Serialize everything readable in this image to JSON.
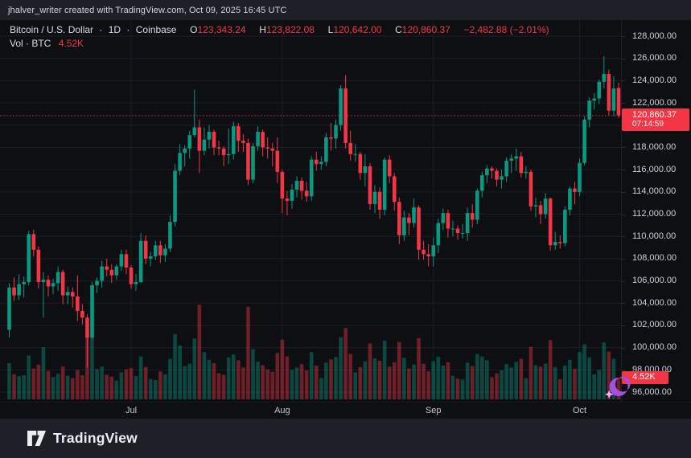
{
  "attribution": {
    "text": "jhalver_writer created with TradingView.com, Oct 09, 2025 16:45 UTC"
  },
  "legend": {
    "title": {
      "symbol": "Bitcoin / U.S. Dollar",
      "separator": "·",
      "interval": "1D",
      "exchange": "Coinbase"
    },
    "ohlc": {
      "o_label": "O",
      "o": "123,343.24",
      "h_label": "H",
      "h": "123,822.08",
      "l_label": "L",
      "l": "120,642.00",
      "c_label": "C",
      "c": "120,860.37",
      "change": "−2,482.88 (−2.01%)"
    },
    "volume": {
      "label": "Vol · BTC",
      "value": "4.52K"
    }
  },
  "price_axis": {
    "labels": [
      "128,000.00",
      "126,000.00",
      "124,000.00",
      "122,000.00",
      "118,000.00",
      "116,000.00",
      "114,000.00",
      "112,000.00",
      "110,000.00",
      "108,000.00",
      "106,000.00",
      "104,000.00",
      "102,000.00",
      "100,000.00",
      "98,000.00",
      "96,000.00"
    ],
    "values": [
      128000,
      126000,
      124000,
      122000,
      118000,
      116000,
      114000,
      112000,
      110000,
      108000,
      106000,
      104000,
      102000,
      100000,
      98000,
      96000
    ]
  },
  "price_badge": {
    "price": "120,860.37",
    "countdown": "07:14:59"
  },
  "vol_badge": {
    "value": "4.52K"
  },
  "time_axis": {
    "months": [
      {
        "label": "Jul",
        "index": 25
      },
      {
        "label": "Aug",
        "index": 56
      },
      {
        "label": "Sep",
        "index": 87
      },
      {
        "label": "Oct",
        "index": 117
      }
    ]
  },
  "footer": {
    "brand": "TradingView"
  },
  "colors": {
    "up": "#089981",
    "down": "#f23645",
    "grid": "#1c1f26",
    "price_line": "#f23645",
    "badge_bg": "#f23645",
    "sticker_purple": "#a34fe0",
    "sticker_star": "#dfb8ff"
  },
  "chart_data": {
    "type": "candlestick",
    "title": "Bitcoin / U.S. Dollar · 1D · Coinbase",
    "x_unit": "trading day, Jun 6 2025 – Oct 9 2025",
    "price_unit": "thousand USD per candle value [open, high, low, close]",
    "volume_unit": "thousand BTC",
    "ylim": [
      96000,
      128000
    ],
    "y_tick_step": 2000,
    "grid": true,
    "current_price": 120860.37,
    "current_price_line": true,
    "countdown": "07:14:59",
    "last_volume_label": "4.52K",
    "month_tick_indices": {
      "Jul": 25,
      "Aug": 56,
      "Sep": 87,
      "Oct": 117
    },
    "candles_k_usd": [
      [
        101.6,
        105.8,
        100.9,
        105.4
      ],
      [
        105.4,
        106.3,
        104.2,
        104.7
      ],
      [
        104.7,
        106.6,
        104.3,
        105.7
      ],
      [
        105.7,
        106.4,
        104.5,
        105.9
      ],
      [
        105.9,
        110.5,
        105.6,
        110.2
      ],
      [
        110.2,
        110.6,
        108.2,
        108.8
      ],
      [
        108.8,
        109.1,
        105.3,
        105.9
      ],
      [
        105.9,
        106.8,
        102.7,
        106.1
      ],
      [
        106.1,
        106.5,
        104.6,
        105.5
      ],
      [
        105.5,
        106.2,
        104.8,
        105.8
      ],
      [
        105.8,
        107.3,
        105.1,
        106.8
      ],
      [
        106.8,
        107.0,
        103.9,
        104.7
      ],
      [
        104.7,
        105.5,
        103.9,
        105.0
      ],
      [
        105.0,
        105.4,
        103.6,
        104.6
      ],
      [
        104.6,
        106.5,
        102.4,
        103.3
      ],
      [
        103.3,
        103.9,
        102.1,
        102.7
      ],
      [
        102.7,
        103.0,
        98.2,
        100.9
      ],
      [
        100.9,
        105.9,
        100.8,
        105.6
      ],
      [
        105.6,
        106.3,
        104.9,
        106.0
      ],
      [
        106.0,
        107.8,
        105.4,
        107.3
      ],
      [
        107.3,
        108.0,
        106.4,
        107.0
      ],
      [
        107.0,
        107.5,
        105.8,
        106.5
      ],
      [
        106.5,
        107.5,
        106.1,
        107.3
      ],
      [
        107.3,
        108.8,
        106.9,
        108.4
      ],
      [
        108.4,
        108.8,
        106.6,
        107.2
      ],
      [
        107.2,
        107.4,
        105.3,
        105.7
      ],
      [
        105.7,
        106.6,
        105.1,
        105.9
      ],
      [
        105.9,
        110.3,
        105.8,
        109.6
      ],
      [
        109.6,
        110.1,
        107.5,
        108.0
      ],
      [
        108.0,
        108.6,
        107.3,
        108.2
      ],
      [
        108.2,
        109.6,
        107.9,
        109.2
      ],
      [
        109.2,
        109.6,
        107.6,
        108.3
      ],
      [
        108.3,
        109.3,
        107.7,
        108.9
      ],
      [
        108.9,
        111.9,
        108.6,
        111.3
      ],
      [
        111.3,
        116.5,
        110.9,
        115.9
      ],
      [
        115.9,
        118.3,
        115.5,
        117.5
      ],
      [
        117.5,
        118.2,
        116.3,
        117.9
      ],
      [
        117.9,
        119.5,
        117.0,
        119.1
      ],
      [
        119.1,
        123.2,
        118.9,
        119.8
      ],
      [
        119.8,
        120.5,
        115.7,
        117.7
      ],
      [
        117.7,
        119.8,
        117.3,
        118.7
      ],
      [
        118.7,
        120.0,
        117.9,
        119.4
      ],
      [
        119.4,
        119.6,
        117.3,
        118.0
      ],
      [
        118.0,
        118.6,
        117.3,
        117.9
      ],
      [
        117.9,
        118.1,
        116.3,
        117.3
      ],
      [
        117.3,
        119.7,
        116.5,
        117.4
      ],
      [
        117.4,
        120.3,
        116.9,
        119.9
      ],
      [
        119.9,
        120.2,
        117.6,
        118.6
      ],
      [
        118.6,
        119.2,
        117.6,
        118.4
      ],
      [
        118.4,
        118.8,
        114.6,
        115.1
      ],
      [
        115.1,
        118.4,
        114.8,
        118.1
      ],
      [
        118.1,
        119.9,
        117.7,
        119.4
      ],
      [
        119.4,
        119.6,
        117.2,
        118.0
      ],
      [
        118.0,
        118.9,
        117.0,
        117.9
      ],
      [
        117.9,
        118.4,
        116.3,
        117.7
      ],
      [
        117.7,
        118.9,
        114.8,
        115.8
      ],
      [
        115.8,
        116.0,
        112.1,
        113.4
      ],
      [
        113.4,
        114.1,
        111.9,
        113.2
      ],
      [
        113.2,
        114.7,
        112.5,
        114.2
      ],
      [
        114.2,
        115.4,
        113.5,
        115.0
      ],
      [
        115.0,
        115.3,
        113.3,
        114.1
      ],
      [
        114.1,
        114.9,
        113.1,
        113.6
      ],
      [
        113.6,
        117.2,
        113.2,
        116.9
      ],
      [
        116.9,
        117.6,
        115.9,
        116.5
      ],
      [
        116.5,
        117.2,
        116.0,
        116.7
      ],
      [
        116.7,
        119.3,
        116.3,
        118.9
      ],
      [
        118.9,
        120.2,
        117.7,
        118.8
      ],
      [
        118.8,
        120.5,
        117.9,
        120.0
      ],
      [
        120.0,
        123.6,
        119.5,
        123.3
      ],
      [
        123.3,
        124.5,
        117.9,
        118.4
      ],
      [
        118.4,
        119.5,
        116.8,
        117.4
      ],
      [
        117.4,
        118.3,
        116.7,
        117.4
      ],
      [
        117.4,
        117.6,
        115.1,
        115.7
      ],
      [
        115.7,
        117.4,
        114.5,
        116.3
      ],
      [
        116.3,
        116.6,
        112.4,
        112.9
      ],
      [
        112.9,
        114.6,
        112.1,
        114.0
      ],
      [
        114.0,
        114.4,
        111.6,
        112.4
      ],
      [
        112.4,
        117.1,
        111.9,
        116.9
      ],
      [
        116.9,
        117.3,
        114.8,
        115.4
      ],
      [
        115.4,
        115.7,
        112.3,
        113.1
      ],
      [
        113.1,
        113.5,
        109.3,
        110.1
      ],
      [
        110.1,
        112.3,
        109.6,
        111.7
      ],
      [
        111.7,
        112.1,
        110.1,
        111.2
      ],
      [
        111.2,
        113.4,
        110.8,
        112.6
      ],
      [
        112.6,
        112.8,
        107.9,
        108.8
      ],
      [
        108.8,
        109.6,
        107.9,
        108.4
      ],
      [
        108.4,
        109.3,
        107.3,
        108.2
      ],
      [
        108.2,
        109.9,
        107.3,
        109.2
      ],
      [
        109.2,
        111.6,
        108.5,
        111.2
      ],
      [
        111.2,
        112.5,
        110.6,
        112.1
      ],
      [
        112.1,
        112.4,
        109.9,
        110.7
      ],
      [
        110.7,
        111.4,
        110.0,
        110.7
      ],
      [
        110.7,
        111.0,
        109.7,
        110.3
      ],
      [
        110.3,
        111.1,
        109.8,
        110.3
      ],
      [
        110.3,
        112.6,
        109.6,
        112.1
      ],
      [
        112.1,
        112.9,
        110.8,
        111.5
      ],
      [
        111.5,
        114.3,
        111.1,
        114.1
      ],
      [
        114.1,
        115.8,
        113.5,
        115.5
      ],
      [
        115.5,
        116.4,
        114.8,
        116.1
      ],
      [
        116.1,
        116.3,
        115.2,
        115.9
      ],
      [
        115.9,
        116.1,
        114.5,
        115.1
      ],
      [
        115.1,
        116.0,
        114.3,
        115.4
      ],
      [
        115.4,
        117.1,
        114.9,
        116.8
      ],
      [
        116.8,
        117.4,
        115.7,
        117.0
      ],
      [
        117.0,
        117.9,
        115.9,
        117.2
      ],
      [
        117.2,
        117.6,
        115.3,
        115.7
      ],
      [
        115.7,
        116.3,
        115.2,
        115.8
      ],
      [
        115.8,
        116.0,
        112.3,
        112.7
      ],
      [
        112.7,
        113.5,
        111.7,
        112.8
      ],
      [
        112.8,
        113.2,
        111.1,
        112.0
      ],
      [
        112.0,
        113.9,
        111.6,
        113.4
      ],
      [
        113.4,
        113.5,
        108.7,
        109.2
      ],
      [
        109.2,
        110.4,
        108.8,
        109.5
      ],
      [
        109.5,
        110.1,
        108.9,
        109.4
      ],
      [
        109.4,
        112.7,
        109.1,
        112.4
      ],
      [
        112.4,
        114.5,
        111.9,
        114.3
      ],
      [
        114.3,
        114.9,
        112.9,
        114.0
      ],
      [
        114.0,
        117.0,
        113.6,
        116.6
      ],
      [
        116.6,
        120.8,
        116.4,
        120.5
      ],
      [
        120.5,
        122.5,
        119.8,
        122.2
      ],
      [
        122.2,
        122.9,
        121.4,
        122.4
      ],
      [
        122.4,
        124.1,
        121.9,
        123.9
      ],
      [
        123.9,
        126.2,
        123.3,
        124.6
      ],
      [
        124.6,
        125.0,
        120.9,
        121.3
      ],
      [
        121.3,
        124.4,
        120.8,
        123.3
      ],
      [
        123.343,
        123.822,
        120.642,
        120.86
      ]
    ],
    "volumes_k_btc": [
      7.5,
      5.2,
      4.8,
      5.0,
      9.1,
      6.4,
      7.2,
      10.8,
      5.9,
      4.6,
      5.3,
      6.8,
      4.9,
      4.4,
      6.1,
      5.0,
      14.2,
      12.8,
      6.3,
      6.8,
      5.1,
      4.7,
      3.9,
      5.6,
      6.2,
      6.5,
      4.8,
      8.9,
      6.7,
      4.2,
      4.0,
      5.8,
      5.2,
      8.4,
      13.5,
      11.2,
      6.9,
      7.4,
      12.6,
      19.6,
      9.8,
      8.2,
      7.5,
      5.4,
      5.1,
      8.7,
      9.3,
      8.1,
      6.6,
      19.2,
      10.4,
      7.8,
      7.1,
      6.2,
      5.7,
      9.6,
      12.4,
      8.9,
      6.1,
      6.6,
      7.3,
      6.0,
      9.8,
      7.0,
      4.4,
      7.6,
      8.3,
      8.8,
      12.9,
      14.8,
      9.4,
      5.6,
      6.7,
      7.9,
      11.6,
      8.5,
      8.0,
      12.2,
      6.8,
      7.7,
      11.9,
      8.6,
      6.4,
      7.2,
      12.7,
      7.4,
      5.8,
      7.9,
      8.8,
      7.0,
      7.7,
      4.9,
      4.3,
      4.1,
      7.6,
      6.9,
      9.4,
      8.9,
      8.1,
      4.6,
      5.4,
      6.0,
      7.3,
      6.6,
      7.8,
      8.4,
      4.4,
      10.9,
      7.1,
      6.8,
      7.4,
      12.3,
      6.7,
      4.2,
      7.0,
      8.2,
      6.3,
      9.8,
      11.4,
      8.7,
      5.2,
      6.1,
      11.8,
      9.9,
      8.4,
      4.52
    ]
  }
}
